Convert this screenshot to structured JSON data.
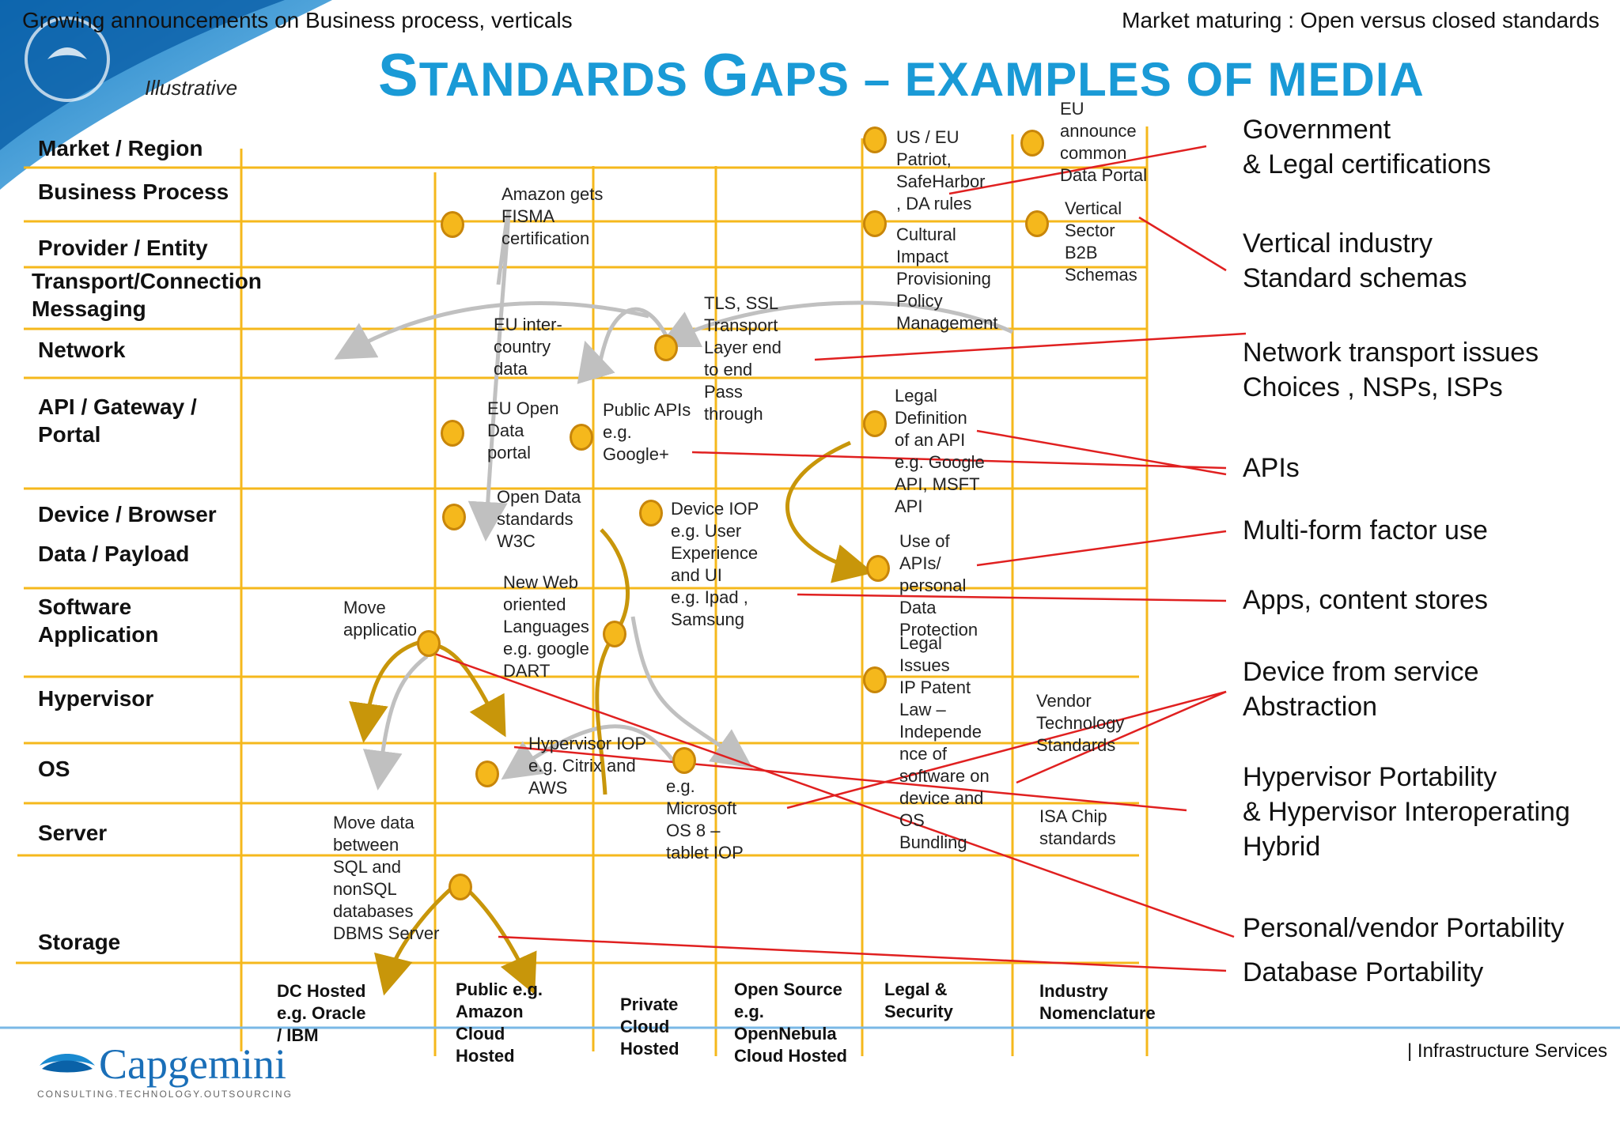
{
  "header": {
    "left_caption": "Growing announcements on Business process, verticals",
    "right_caption": "Market maturing : Open versus closed standards",
    "illustrative": "Illustrative",
    "title_parts": [
      "S",
      "TANDARDS ",
      "G",
      "APS – EXAMPLES OF MEDIA"
    ]
  },
  "rows": [
    "Market / Region",
    "Business Process",
    "Provider / Entity",
    "Transport/Connection",
    "Messaging",
    "Network",
    "API / Gateway /",
    "Portal",
    "Device / Browser",
    "Data / Payload",
    "Software",
    "Application",
    "Hypervisor",
    "OS",
    "Server",
    "Storage"
  ],
  "columns": [
    [
      "DC Hosted",
      "e.g. Oracle",
      "/ IBM"
    ],
    [
      "Public e.g.",
      "Amazon",
      "Cloud",
      "Hosted"
    ],
    [
      "Private",
      "Cloud",
      "Hosted"
    ],
    [
      "Open Source",
      "e.g.",
      "OpenNebula",
      "Cloud Hosted"
    ],
    [
      "Legal &",
      "Security"
    ],
    [
      "Industry",
      "Nomenclature"
    ]
  ],
  "notes": {
    "amazon_fisma": [
      "Amazon gets",
      "FISMA",
      "certification"
    ],
    "eu_intercountry": [
      "EU inter-",
      "country",
      "data"
    ],
    "eu_open_data": [
      "EU Open",
      "Data",
      "portal"
    ],
    "public_apis": [
      "Public APIs",
      "e.g.",
      "Google+"
    ],
    "tls_ssl": [
      "TLS, SSL",
      "Transport",
      "Layer end",
      "to end",
      "Pass",
      "through"
    ],
    "open_data_w3c": [
      "Open Data",
      "standards",
      "W3C"
    ],
    "device_iop": [
      "Device IOP",
      "e.g. User",
      "Experience",
      "and UI",
      "e.g. Ipad ,",
      "Samsung"
    ],
    "new_web": [
      "New Web",
      "oriented",
      "Languages",
      "e.g. google",
      "DART"
    ],
    "move_app": [
      "Move",
      "applicatio"
    ],
    "hypervisor_iop": [
      "Hypervisor IOP",
      "e.g. Citrix and",
      "AWS"
    ],
    "ms_os8": [
      "e.g.",
      "Microsoft",
      "OS 8 –",
      "tablet  IOP"
    ],
    "move_data": [
      "Move data",
      "between",
      "SQL and",
      "nonSQL",
      "databases",
      "DBMS Server"
    ],
    "us_eu": [
      "US / EU",
      "Patriot,",
      "SafeHarbor",
      ", DA rules"
    ],
    "eu_announce": [
      "EU",
      "announce",
      "common",
      "Data Portal"
    ],
    "cultural": [
      "Cultural",
      "Impact",
      "Provisioning",
      "Policy",
      "Management"
    ],
    "vertical_b2b": [
      "Vertical",
      "Sector",
      "B2B",
      "Schemas"
    ],
    "legal_api": [
      "Legal",
      "Definition",
      "of an API",
      "e.g. Google",
      "API, MSFT",
      "API"
    ],
    "use_of_apis": [
      "Use of",
      "APIs/",
      "personal",
      "Data",
      "Protection"
    ],
    "legal_issues": [
      "Legal",
      "Issues",
      "IP Patent",
      "Law –",
      "Independe",
      "nce of",
      "software on",
      "device  and",
      "OS",
      "Bundling"
    ],
    "vendor_tech": [
      "Vendor",
      "Technology",
      "Standards"
    ],
    "isa_chip": [
      "ISA Chip",
      "standards"
    ]
  },
  "right_labels": [
    [
      "Government",
      "& Legal certifications"
    ],
    [
      "Vertical industry",
      "Standard schemas"
    ],
    [
      "Network transport issues",
      "Choices , NSPs, ISPs"
    ],
    [
      "APIs"
    ],
    [
      "Multi-form factor use"
    ],
    [
      "Apps, content stores"
    ],
    [
      "Device from service",
      "Abstraction"
    ],
    [
      "Hypervisor Portability",
      "& Hypervisor Interoperating",
      "Hybrid"
    ],
    [
      "Personal/vendor Portability"
    ],
    [
      "Database Portability"
    ]
  ],
  "footer": {
    "logo_text": "Capgemini",
    "logo_tagline": "CONSULTING.TECHNOLOGY.OUTSOURCING",
    "right_text": "| Infrastructure Services"
  },
  "colors": {
    "grid": "#f5b81c",
    "title": "#1a9ad6",
    "red_line": "#e02020",
    "gold_arrow": "#c8960a",
    "gray_arrow": "#c0c0c0"
  }
}
